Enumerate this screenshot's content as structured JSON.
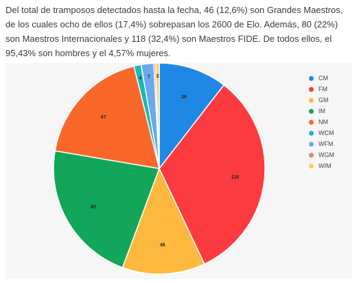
{
  "paragraph": "Del total de tramposos detectados hasta la fecha, 46 (12,6%) son Grandes Maestros, de los cuales ocho de ellos (17,4%) sobrepasan los 2600 de Elo. Además, 80 (22%) son Maestros Internacionales y 118 (32,4%) son Maestros FIDE. De todos ellos, el 95,43% son hombres y el 4,57% mujeres.",
  "chart_data": {
    "type": "pie",
    "title": "",
    "legend_position": "right",
    "slices": [
      {
        "label": "CM",
        "value": 38,
        "color": "#1f88e5"
      },
      {
        "label": "FM",
        "value": 118,
        "color": "#fb3b3f"
      },
      {
        "label": "GM",
        "value": 46,
        "color": "#fdb83d"
      },
      {
        "label": "IM",
        "value": 80,
        "color": "#11a65a"
      },
      {
        "label": "NM",
        "value": 67,
        "color": "#f9672a"
      },
      {
        "label": "WCM",
        "value": 4,
        "color": "#19b9b5"
      },
      {
        "label": "WFM",
        "value": 7,
        "color": "#6aa8ef"
      },
      {
        "label": "WGM",
        "value": 1,
        "color": "#f37a7a"
      },
      {
        "label": "WIM",
        "value": 2,
        "color": "#fdd05f"
      }
    ],
    "data_labels": [
      "38",
      "118",
      "46",
      "80",
      "67",
      "4",
      "7",
      "",
      "2"
    ]
  }
}
